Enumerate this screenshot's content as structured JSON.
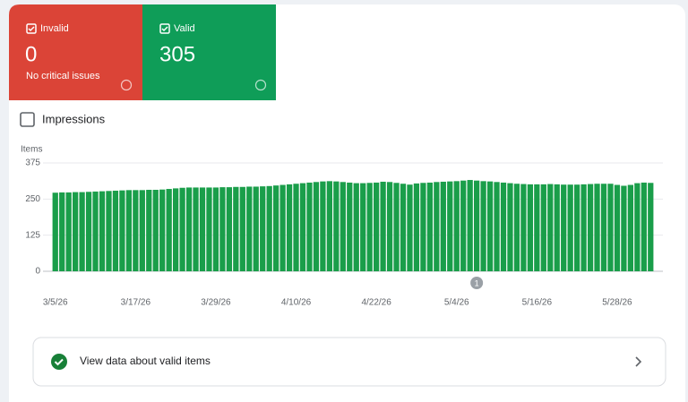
{
  "cards": [
    {
      "label": "Invalid",
      "count": 0,
      "note": "No critical issues",
      "color": "#db4437"
    },
    {
      "label": "Valid",
      "count": 305,
      "color": "#0f9d58"
    }
  ],
  "impressions_label": "Impressions",
  "chart_data": {
    "type": "bar",
    "y_label": "Items",
    "color": "#1a9e4a",
    "ylim": [
      0,
      375
    ],
    "yticks": [
      0,
      125,
      250,
      375
    ],
    "grid": true,
    "categories": [
      "3/5/26",
      null,
      null,
      null,
      null,
      null,
      null,
      null,
      null,
      null,
      null,
      null,
      "3/17/26",
      null,
      null,
      null,
      null,
      null,
      null,
      null,
      null,
      null,
      null,
      null,
      "3/29/26",
      null,
      null,
      null,
      null,
      null,
      null,
      null,
      null,
      null,
      null,
      null,
      "4/10/26",
      null,
      null,
      null,
      null,
      null,
      null,
      null,
      null,
      null,
      null,
      null,
      "4/22/26",
      null,
      null,
      null,
      null,
      null,
      null,
      null,
      null,
      null,
      null,
      null,
      "5/4/26",
      null,
      null,
      null,
      null,
      null,
      null,
      null,
      null,
      null,
      null,
      null,
      "5/16/26",
      null,
      null,
      null,
      null,
      null,
      null,
      null,
      null,
      null,
      null,
      null,
      "5/28/26",
      null,
      null,
      null,
      null,
      null
    ],
    "values": [
      272,
      273,
      273,
      274,
      274,
      275,
      276,
      277,
      278,
      279,
      280,
      281,
      281,
      281,
      282,
      282,
      283,
      285,
      287,
      289,
      290,
      290,
      290,
      290,
      290,
      291,
      291,
      292,
      292,
      293,
      293,
      294,
      295,
      297,
      299,
      301,
      303,
      305,
      307,
      309,
      311,
      312,
      311,
      309,
      307,
      305,
      305,
      306,
      307,
      310,
      309,
      306,
      303,
      300,
      304,
      306,
      307,
      309,
      310,
      311,
      312,
      314,
      316,
      314,
      312,
      311,
      309,
      307,
      305,
      303,
      302,
      301,
      301,
      301,
      302,
      301,
      300,
      300,
      300,
      301,
      302,
      303,
      303,
      303,
      299,
      296,
      299,
      305,
      307,
      306
    ],
    "annotations": [
      {
        "index": 63,
        "text": "1"
      }
    ]
  },
  "footer_link": "View data about valid items"
}
